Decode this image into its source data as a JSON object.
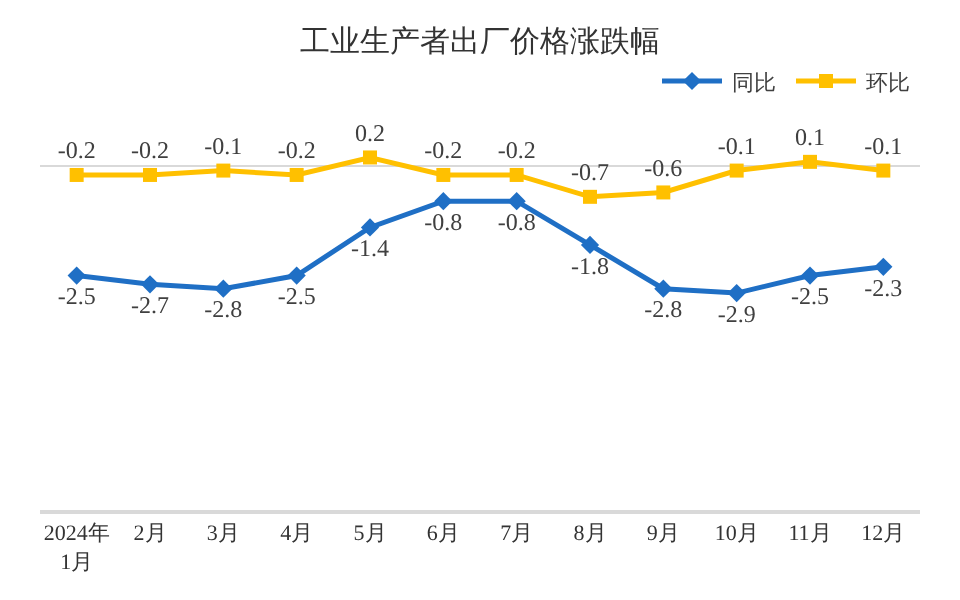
{
  "chart_data": {
    "type": "line",
    "title": "工业生产者出厂价格涨跌幅",
    "categories": [
      "2024年\n1月",
      "2月",
      "3月",
      "4月",
      "5月",
      "6月",
      "7月",
      "8月",
      "9月",
      "10月",
      "11月",
      "12月"
    ],
    "series": [
      {
        "name": "同比",
        "color": "#1f6fc5",
        "marker": "diamond",
        "values": [
          -2.5,
          -2.7,
          -2.8,
          -2.5,
          -1.4,
          -0.8,
          -0.8,
          -1.8,
          -2.8,
          -2.9,
          -2.5,
          -2.3
        ]
      },
      {
        "name": "环比",
        "color": "#ffc000",
        "marker": "square",
        "values": [
          -0.2,
          -0.2,
          -0.1,
          -0.2,
          0.2,
          -0.2,
          -0.2,
          -0.7,
          -0.6,
          -0.1,
          0.1,
          -0.1
        ]
      }
    ],
    "data_labels": true,
    "legend": "top right",
    "line_style": "solid"
  }
}
